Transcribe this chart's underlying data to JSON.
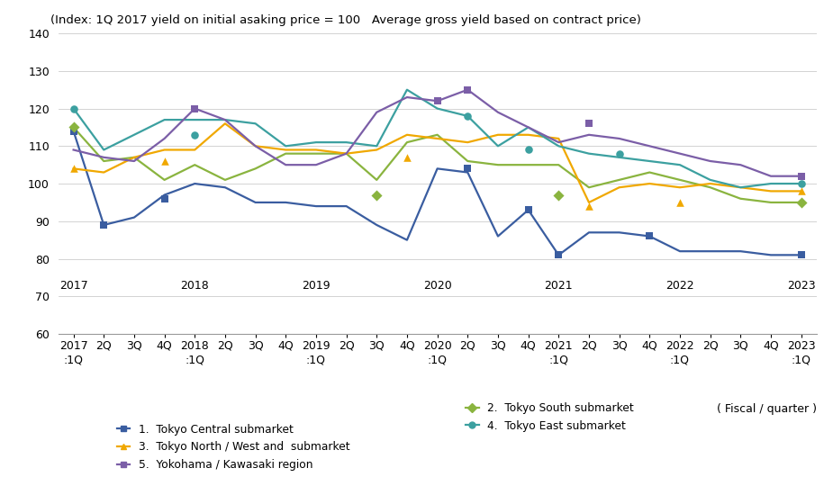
{
  "subtitle": "(Index: 1Q 2017 yield on initial asaking price = 100   Average gross yield based on contract price)",
  "xlabel": "( Fiscal / quarter )",
  "ylim": [
    60,
    140
  ],
  "yticks": [
    60,
    70,
    80,
    90,
    100,
    110,
    120,
    130,
    140
  ],
  "series": [
    {
      "key": "tokyo_central",
      "label": "1.  Tokyo Central submarket",
      "color": "#3a5da0",
      "line_marker": "s",
      "line": [
        114,
        89,
        91,
        97,
        100,
        99,
        95,
        95,
        94,
        94,
        89,
        85,
        104,
        103,
        86,
        93,
        81,
        87,
        87,
        86,
        82,
        82,
        82,
        81,
        81
      ],
      "dots": [
        114,
        89,
        null,
        96,
        null,
        null,
        null,
        null,
        null,
        null,
        null,
        null,
        null,
        104,
        null,
        93,
        81,
        null,
        null,
        86,
        null,
        null,
        null,
        null,
        81
      ]
    },
    {
      "key": "tokyo_south",
      "label": "2.  Tokyo South submarket",
      "color": "#8ab43f",
      "line_marker": "D",
      "line": [
        115,
        106,
        107,
        101,
        105,
        101,
        104,
        108,
        108,
        108,
        101,
        111,
        113,
        106,
        105,
        105,
        105,
        99,
        101,
        103,
        101,
        99,
        96,
        95,
        95
      ],
      "dots": [
        115,
        null,
        null,
        null,
        null,
        null,
        null,
        null,
        null,
        null,
        97,
        null,
        null,
        null,
        null,
        null,
        97,
        null,
        null,
        null,
        null,
        null,
        null,
        null,
        95
      ]
    },
    {
      "key": "tokyo_north",
      "label": "3.  Tokyo North / West and  submarket",
      "color": "#f0a800",
      "line_marker": "^",
      "line": [
        104,
        103,
        107,
        109,
        109,
        116,
        110,
        109,
        109,
        108,
        109,
        113,
        112,
        111,
        113,
        113,
        112,
        95,
        99,
        100,
        99,
        100,
        99,
        98,
        98
      ],
      "dots": [
        104,
        null,
        null,
        106,
        null,
        null,
        null,
        null,
        null,
        null,
        null,
        107,
        null,
        null,
        null,
        null,
        null,
        94,
        null,
        null,
        95,
        null,
        null,
        null,
        98
      ]
    },
    {
      "key": "tokyo_east",
      "label": "4.  Tokyo East submarket",
      "color": "#3ca0a0",
      "line_marker": "o",
      "line": [
        120,
        109,
        113,
        117,
        117,
        117,
        116,
        110,
        111,
        111,
        110,
        125,
        120,
        118,
        110,
        115,
        110,
        108,
        107,
        106,
        105,
        101,
        99,
        100,
        100
      ],
      "dots": [
        120,
        null,
        null,
        null,
        113,
        null,
        null,
        null,
        null,
        null,
        null,
        null,
        null,
        118,
        null,
        109,
        null,
        null,
        108,
        null,
        null,
        null,
        null,
        null,
        100
      ]
    },
    {
      "key": "yokohama",
      "label": "5.  Yokohama / Kawasaki region",
      "color": "#7b5ea7",
      "line_marker": "s",
      "line": [
        109,
        107,
        106,
        112,
        120,
        117,
        110,
        105,
        105,
        108,
        119,
        123,
        122,
        125,
        119,
        115,
        111,
        113,
        112,
        110,
        108,
        106,
        105,
        102,
        102
      ],
      "dots": [
        null,
        null,
        null,
        null,
        120,
        null,
        null,
        null,
        null,
        null,
        null,
        null,
        122,
        125,
        null,
        null,
        null,
        116,
        null,
        null,
        null,
        null,
        null,
        null,
        102
      ]
    }
  ],
  "year_positions": [
    0,
    4,
    8,
    12,
    16,
    20,
    24
  ],
  "year_labels": [
    "2017",
    "2018",
    "2019",
    "2020",
    "2021",
    "2022",
    "2023"
  ],
  "quarter_labels": [
    ":1Q",
    "2Q",
    "3Q",
    "4Q",
    ":1Q",
    "2Q",
    "3Q",
    "4Q",
    ":1Q",
    "2Q",
    "3Q",
    "4Q",
    ":1Q",
    "2Q",
    "3Q",
    "4Q",
    ":1Q",
    "2Q",
    "3Q",
    "4Q",
    ":1Q",
    "2Q",
    "3Q",
    "4Q",
    ":1Q"
  ],
  "background_color": "#ffffff",
  "grid_color": "#cccccc",
  "tick_fontsize": 9,
  "subtitle_fontsize": 9.5,
  "legend_fontsize": 8.8
}
